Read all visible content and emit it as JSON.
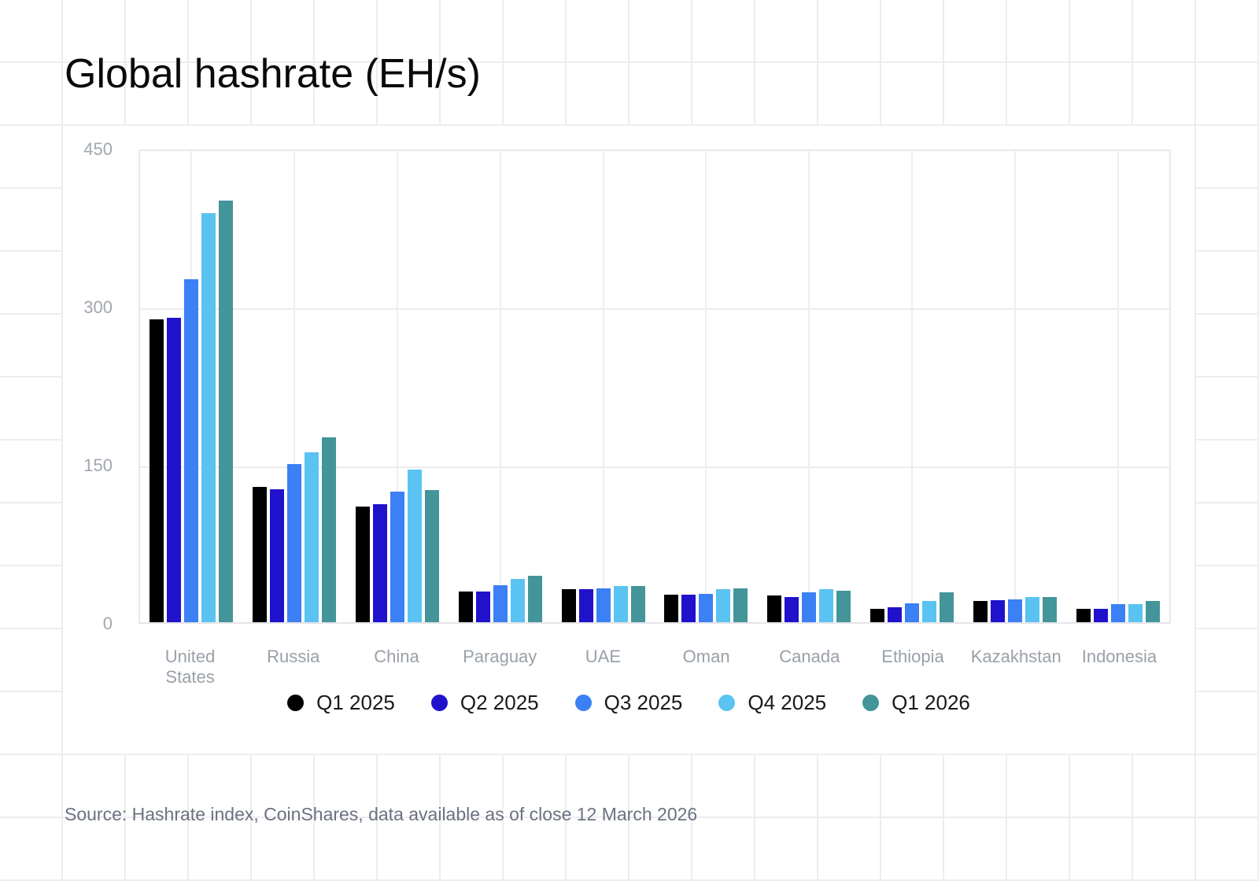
{
  "title": "Global hashrate (EH/s)",
  "source_note": "Source: Hashrate index, CoinShares, data available as of close 12 March 2026",
  "chart_data": {
    "type": "bar",
    "title": "Global hashrate (EH/s)",
    "categories": [
      "United States",
      "Russia",
      "China",
      "Paraguay",
      "UAE",
      "Oman",
      "Canada",
      "Ethiopia",
      "Kazakhstan",
      "Indonesia"
    ],
    "series": [
      {
        "name": "Q1 2025",
        "color": "#000000",
        "values": [
          287,
          128,
          110,
          29,
          31,
          26,
          25,
          13,
          20,
          13
        ]
      },
      {
        "name": "Q2 2025",
        "color": "#2012cb",
        "values": [
          289,
          126,
          112,
          29,
          31,
          26,
          24,
          14,
          21,
          13
        ]
      },
      {
        "name": "Q3 2025",
        "color": "#3b80f4",
        "values": [
          325,
          150,
          124,
          35,
          32,
          27,
          28,
          18,
          22,
          17
        ]
      },
      {
        "name": "Q4 2025",
        "color": "#5ac3f2",
        "values": [
          388,
          161,
          145,
          41,
          34,
          31,
          31,
          20,
          24,
          17
        ]
      },
      {
        "name": "Q1 2026",
        "color": "#439599",
        "values": [
          400,
          175,
          125,
          44,
          34,
          32,
          30,
          28,
          24,
          20
        ]
      }
    ],
    "xlabel": "",
    "ylabel": "",
    "ylim": [
      0,
      450
    ],
    "yticks": [
      450,
      300,
      150,
      0
    ],
    "grid": true,
    "legend_position": "bottom-center"
  }
}
